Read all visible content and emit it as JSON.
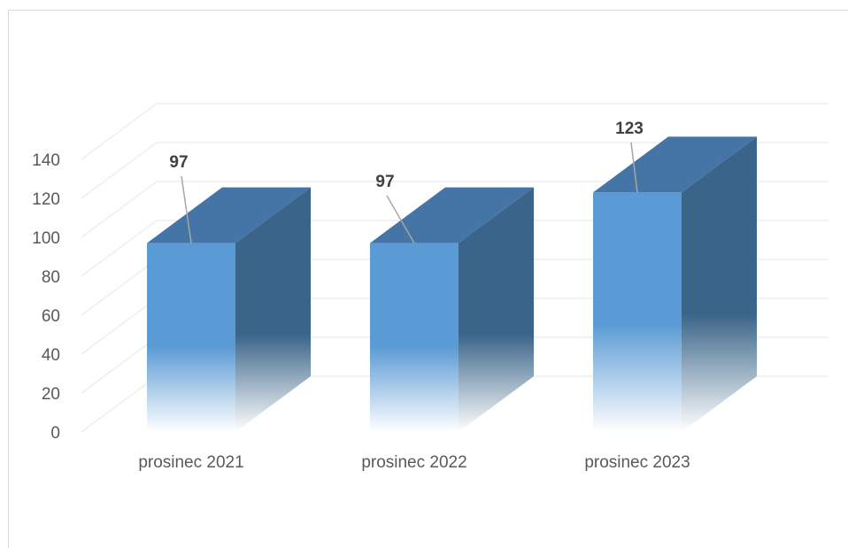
{
  "chart_data": {
    "type": "bar",
    "style": "3d-column",
    "categories": [
      "prosinec 2021",
      "prosinec 2022",
      "prosinec 2023"
    ],
    "values": [
      97,
      97,
      123
    ],
    "data_labels": [
      "97",
      "97",
      "123"
    ],
    "ylim": [
      0,
      140
    ],
    "yticks": [
      "0",
      "20",
      "40",
      "60",
      "80",
      "100",
      "120",
      "140"
    ],
    "grid": true,
    "legend": "none",
    "colors": {
      "front": "#5b9bd5",
      "top": "#4475a6",
      "side": "#3a6489",
      "grid": "#eeeeee",
      "leader": "#a6a6a6"
    }
  }
}
